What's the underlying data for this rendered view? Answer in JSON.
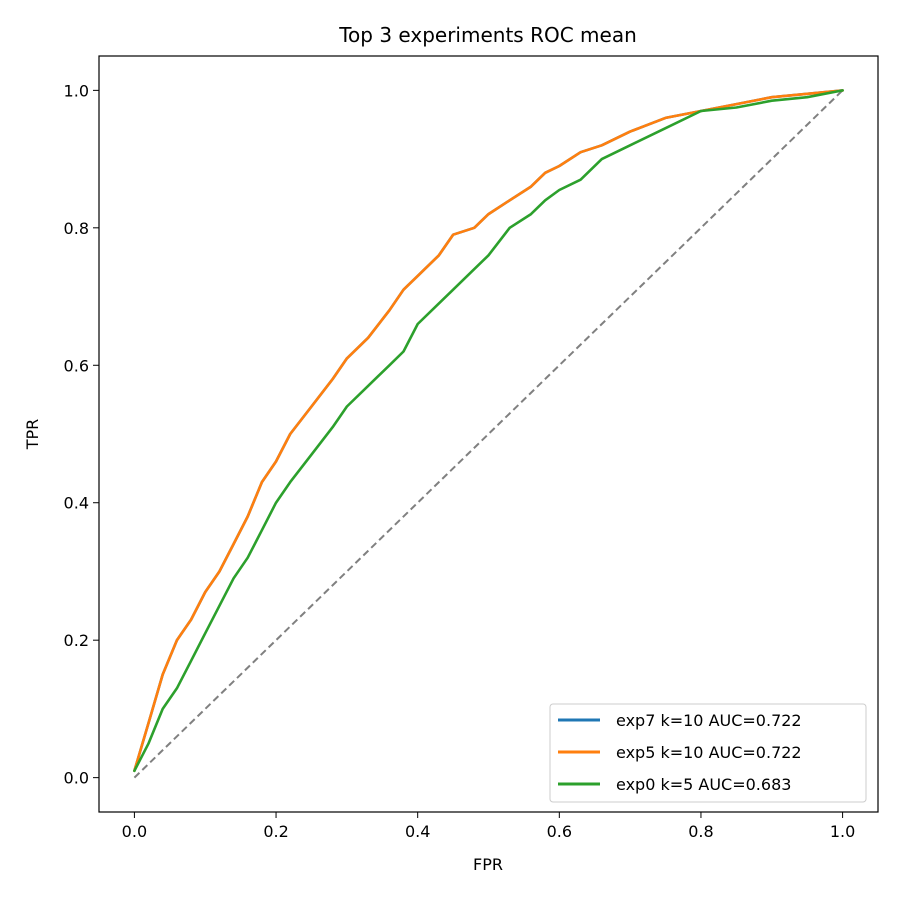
{
  "chart_data": {
    "type": "line",
    "title": "Top 3 experiments ROC mean",
    "xlabel": "FPR",
    "ylabel": "TPR",
    "xlim": [
      -0.05,
      1.05
    ],
    "ylim": [
      -0.05,
      1.05
    ],
    "xticks": [
      0.0,
      0.2,
      0.4,
      0.6,
      0.8,
      1.0
    ],
    "yticks": [
      0.0,
      0.2,
      0.4,
      0.6,
      0.8,
      1.0
    ],
    "xtick_labels": [
      "0.0",
      "0.2",
      "0.4",
      "0.6",
      "0.8",
      "1.0"
    ],
    "ytick_labels": [
      "0.0",
      "0.2",
      "0.4",
      "0.6",
      "0.8",
      "1.0"
    ],
    "grid": false,
    "legend_position": "lower-right",
    "series": [
      {
        "name": "exp7 k=10 AUC=0.722",
        "color": "#1f77b4",
        "x": [
          0.0,
          0.02,
          0.04,
          0.06,
          0.08,
          0.1,
          0.12,
          0.14,
          0.16,
          0.18,
          0.2,
          0.22,
          0.25,
          0.28,
          0.3,
          0.33,
          0.36,
          0.38,
          0.4,
          0.43,
          0.45,
          0.48,
          0.5,
          0.53,
          0.56,
          0.58,
          0.6,
          0.63,
          0.66,
          0.7,
          0.75,
          0.8,
          0.85,
          0.9,
          0.95,
          1.0
        ],
        "y": [
          0.01,
          0.08,
          0.15,
          0.2,
          0.23,
          0.27,
          0.3,
          0.34,
          0.38,
          0.43,
          0.46,
          0.5,
          0.54,
          0.58,
          0.61,
          0.64,
          0.68,
          0.71,
          0.73,
          0.76,
          0.79,
          0.8,
          0.82,
          0.84,
          0.86,
          0.88,
          0.89,
          0.91,
          0.92,
          0.94,
          0.96,
          0.97,
          0.98,
          0.99,
          0.995,
          1.0
        ]
      },
      {
        "name": "exp5 k=10 AUC=0.722",
        "color": "#ff7f0e",
        "x": [
          0.0,
          0.02,
          0.04,
          0.06,
          0.08,
          0.1,
          0.12,
          0.14,
          0.16,
          0.18,
          0.2,
          0.22,
          0.25,
          0.28,
          0.3,
          0.33,
          0.36,
          0.38,
          0.4,
          0.43,
          0.45,
          0.48,
          0.5,
          0.53,
          0.56,
          0.58,
          0.6,
          0.63,
          0.66,
          0.7,
          0.75,
          0.8,
          0.85,
          0.9,
          0.95,
          1.0
        ],
        "y": [
          0.01,
          0.08,
          0.15,
          0.2,
          0.23,
          0.27,
          0.3,
          0.34,
          0.38,
          0.43,
          0.46,
          0.5,
          0.54,
          0.58,
          0.61,
          0.64,
          0.68,
          0.71,
          0.73,
          0.76,
          0.79,
          0.8,
          0.82,
          0.84,
          0.86,
          0.88,
          0.89,
          0.91,
          0.92,
          0.94,
          0.96,
          0.97,
          0.98,
          0.99,
          0.995,
          1.0
        ]
      },
      {
        "name": "exp0 k=5 AUC=0.683",
        "color": "#2ca02c",
        "x": [
          0.0,
          0.02,
          0.04,
          0.06,
          0.08,
          0.1,
          0.12,
          0.14,
          0.16,
          0.18,
          0.2,
          0.22,
          0.25,
          0.28,
          0.3,
          0.33,
          0.36,
          0.38,
          0.4,
          0.43,
          0.45,
          0.48,
          0.5,
          0.53,
          0.56,
          0.58,
          0.6,
          0.63,
          0.66,
          0.7,
          0.75,
          0.8,
          0.85,
          0.9,
          0.95,
          1.0
        ],
        "y": [
          0.01,
          0.05,
          0.1,
          0.13,
          0.17,
          0.21,
          0.25,
          0.29,
          0.32,
          0.36,
          0.4,
          0.43,
          0.47,
          0.51,
          0.54,
          0.57,
          0.6,
          0.62,
          0.66,
          0.69,
          0.71,
          0.74,
          0.76,
          0.8,
          0.82,
          0.84,
          0.855,
          0.87,
          0.9,
          0.92,
          0.945,
          0.97,
          0.975,
          0.985,
          0.99,
          1.0
        ]
      }
    ],
    "reference_line": {
      "style": "dashed",
      "color": "#808080",
      "x": [
        0.0,
        1.0
      ],
      "y": [
        0.0,
        1.0
      ]
    }
  }
}
